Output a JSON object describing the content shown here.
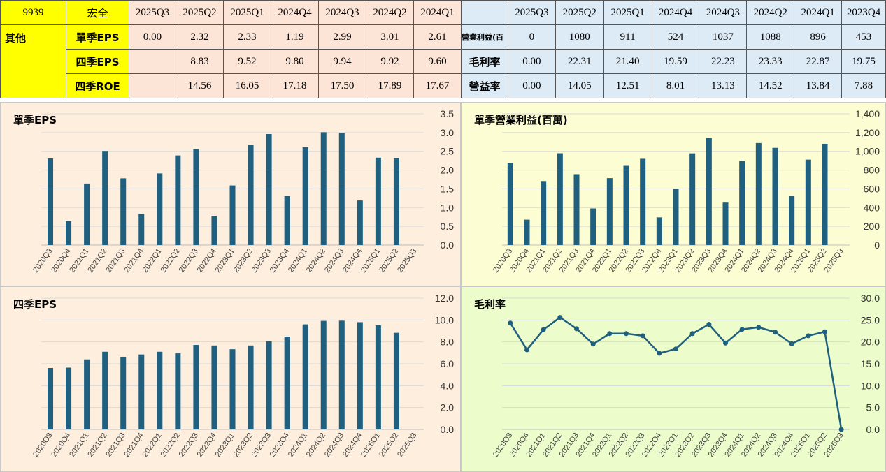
{
  "header": {
    "code": "9939",
    "company": "宏全",
    "category": "其他"
  },
  "left_table": {
    "columns": [
      "2025Q3",
      "2025Q2",
      "2025Q1",
      "2024Q4",
      "2024Q3",
      "2024Q2",
      "2024Q1"
    ],
    "rows": [
      {
        "label": "單季EPS",
        "values": [
          "0.00",
          "2.32",
          "2.33",
          "1.19",
          "2.99",
          "3.01",
          "2.61"
        ]
      },
      {
        "label": "四季EPS",
        "values": [
          "",
          "8.83",
          "9.52",
          "9.80",
          "9.94",
          "9.92",
          "9.60"
        ]
      },
      {
        "label": "四季ROE",
        "values": [
          "",
          "14.56",
          "16.05",
          "17.18",
          "17.50",
          "17.89",
          "17.67"
        ]
      }
    ]
  },
  "right_table": {
    "columns": [
      "2025Q3",
      "2025Q2",
      "2025Q1",
      "2024Q4",
      "2024Q3",
      "2024Q2",
      "2024Q1",
      "2023Q4"
    ],
    "rows": [
      {
        "label": "營業利益(百",
        "values": [
          "0",
          "1080",
          "911",
          "524",
          "1037",
          "1088",
          "896",
          "453"
        ]
      },
      {
        "label": "毛利率",
        "values": [
          "0.00",
          "22.31",
          "21.40",
          "19.59",
          "22.23",
          "23.33",
          "22.87",
          "19.75"
        ]
      },
      {
        "label": "營益率",
        "values": [
          "0.00",
          "14.05",
          "12.51",
          "8.01",
          "13.13",
          "14.52",
          "13.84",
          "7.88"
        ]
      }
    ]
  },
  "colors": {
    "bar": "#1f5f7f",
    "line": "#1f5f7f",
    "panel_orange": "#fdeedd",
    "panel_yellow": "#fdfdd3",
    "panel_green": "#ecfccb"
  },
  "chart_data": [
    {
      "id": "eps-quarter",
      "type": "bar",
      "title": "單季EPS",
      "categories": [
        "2020Q3",
        "2020Q4",
        "2021Q1",
        "2021Q2",
        "2021Q3",
        "2021Q4",
        "2022Q1",
        "2022Q2",
        "2022Q3",
        "2022Q4",
        "2023Q1",
        "2023Q2",
        "2023Q3",
        "2023Q4",
        "2024Q1",
        "2024Q2",
        "2024Q3",
        "2024Q4",
        "2025Q1",
        "2025Q2",
        "2025Q3"
      ],
      "values": [
        2.31,
        0.64,
        1.64,
        2.51,
        1.78,
        0.83,
        1.91,
        2.39,
        2.56,
        0.78,
        1.59,
        2.67,
        2.96,
        1.31,
        2.61,
        3.01,
        2.99,
        1.19,
        2.33,
        2.32,
        0
      ],
      "yticks": [
        "3.5",
        "3.0",
        "2.5",
        "2.0",
        "1.5",
        "1.0",
        "0.5",
        "0.0"
      ],
      "ylim": [
        0,
        3.5
      ]
    },
    {
      "id": "op-income",
      "type": "bar",
      "title": "單季營業利益(百萬)",
      "categories": [
        "2020Q3",
        "2020Q4",
        "2021Q1",
        "2021Q2",
        "2021Q3",
        "2021Q4",
        "2022Q1",
        "2022Q2",
        "2022Q3",
        "2022Q4",
        "2023Q1",
        "2023Q2",
        "2023Q3",
        "2023Q4",
        "2024Q1",
        "2024Q2",
        "2024Q3",
        "2024Q4",
        "2025Q1",
        "2025Q2",
        "2025Q3"
      ],
      "values": [
        878,
        271,
        683,
        979,
        756,
        391,
        714,
        845,
        920,
        295,
        600,
        978,
        1143,
        453,
        896,
        1088,
        1037,
        524,
        911,
        1080,
        0
      ],
      "yticks": [
        "1,400",
        "1,200",
        "1,000",
        "800",
        "600",
        "400",
        "200",
        "0"
      ],
      "ylim": [
        0,
        1400
      ]
    },
    {
      "id": "eps-4q",
      "type": "bar",
      "title": "四季EPS",
      "categories": [
        "2020Q3",
        "2020Q4",
        "2021Q1",
        "2021Q2",
        "2021Q3",
        "2021Q4",
        "2022Q1",
        "2022Q2",
        "2022Q3",
        "2022Q4",
        "2023Q1",
        "2023Q2",
        "2023Q3",
        "2023Q4",
        "2024Q1",
        "2024Q2",
        "2024Q3",
        "2024Q4",
        "2025Q1",
        "2025Q2",
        "2025Q3"
      ],
      "values": [
        5.62,
        5.65,
        6.4,
        7.1,
        6.62,
        6.85,
        7.1,
        6.95,
        7.72,
        7.67,
        7.33,
        7.67,
        8.05,
        8.49,
        9.6,
        9.92,
        9.94,
        9.8,
        9.52,
        8.83,
        0
      ],
      "yticks": [
        "12.0",
        "10.0",
        "8.0",
        "6.0",
        "4.0",
        "2.0",
        "0.0"
      ],
      "ylim": [
        0,
        12
      ]
    },
    {
      "id": "gross-margin",
      "type": "line",
      "title": "毛利率",
      "categories": [
        "2020Q3",
        "2020Q4",
        "2021Q1",
        "2021Q2",
        "2021Q3",
        "2021Q4",
        "2022Q1",
        "2022Q2",
        "2022Q3",
        "2022Q4",
        "2023Q1",
        "2023Q2",
        "2023Q3",
        "2023Q4",
        "2024Q1",
        "2024Q2",
        "2024Q3",
        "2024Q4",
        "2025Q1",
        "2025Q2",
        "2025Q3"
      ],
      "values": [
        24.3,
        18.2,
        22.8,
        25.6,
        23.0,
        19.5,
        21.9,
        21.9,
        21.4,
        17.4,
        18.4,
        21.9,
        24.0,
        19.75,
        22.87,
        23.33,
        22.23,
        19.59,
        21.4,
        22.31,
        0.0
      ],
      "yticks": [
        "30.0",
        "25.0",
        "20.0",
        "15.0",
        "10.0",
        "5.0",
        "0.0"
      ],
      "ylim": [
        0,
        30
      ]
    }
  ]
}
